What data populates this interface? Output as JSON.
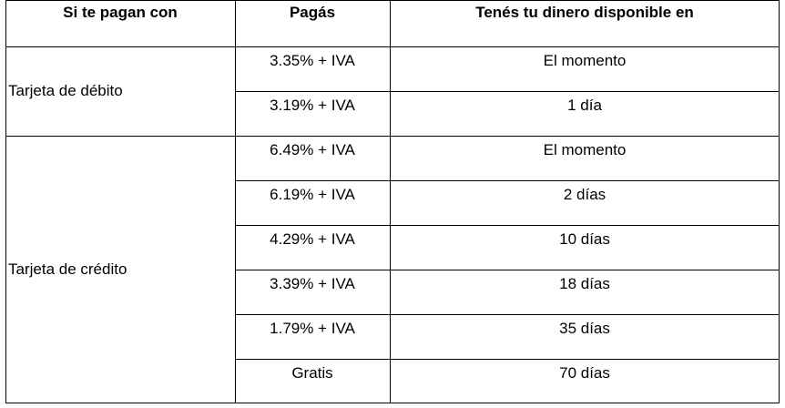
{
  "table": {
    "headers": [
      "Si te pagan con",
      "Pagás",
      "Tenés tu dinero disponible en"
    ],
    "groups": [
      {
        "card": "Tarjeta de débito",
        "rows": [
          {
            "fee": "3.35% + IVA",
            "available": "El momento"
          },
          {
            "fee": "3.19% + IVA",
            "available": "1 día"
          }
        ]
      },
      {
        "card": "Tarjeta de crédito",
        "rows": [
          {
            "fee": "6.49% + IVA",
            "available": "El momento"
          },
          {
            "fee": "6.19% + IVA",
            "available": "2 días"
          },
          {
            "fee": "4.29% + IVA",
            "available": "10 días"
          },
          {
            "fee": "3.39% + IVA",
            "available": "18 días"
          },
          {
            "fee": "1.79% + IVA",
            "available": "35 días"
          },
          {
            "fee": "Gratis",
            "available": "70 días"
          }
        ]
      }
    ]
  }
}
